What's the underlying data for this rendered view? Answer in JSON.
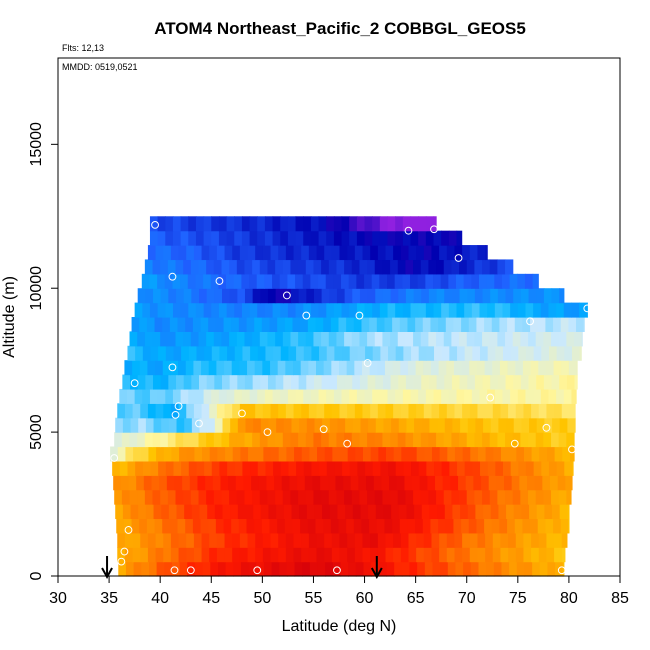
{
  "chart_data": {
    "type": "heatmap",
    "title": "ATOM4 Northeast_Pacific_2 COBBGL_GEOS5",
    "annotations": {
      "flights": "Flts: 12,13",
      "dates": "MMDD: 0519,0521"
    },
    "xlabel": "Latitude (deg N)",
    "ylabel": "Altitude (m)",
    "xlim": [
      30,
      85
    ],
    "ylim": [
      0,
      18000
    ],
    "xticks": [
      "30",
      "35",
      "40",
      "45",
      "50",
      "55",
      "60",
      "65",
      "70",
      "75",
      "80",
      "85"
    ],
    "yticks": [
      "0",
      "5000",
      "10000",
      "15000"
    ],
    "ytick_values": [
      0,
      5000,
      10000,
      15000
    ],
    "grid": false,
    "legend": "none",
    "colors": {
      "scale": [
        "#d4000a",
        "#ff1a00",
        "#ff7a00",
        "#ffc400",
        "#fff7a0",
        "#c8e8ff",
        "#00b4ff",
        "#2060ff",
        "#0000b0",
        "#9020e0"
      ]
    },
    "arrows_latitude": [
      34.8,
      61.2
    ],
    "bands": [
      {
        "alt": 250,
        "lat_start": 35.9,
        "lat_end": 79.5,
        "profile": [
          [
            36,
            2.6
          ],
          [
            40,
            1.7
          ],
          [
            46,
            0.8
          ],
          [
            55,
            0.2
          ],
          [
            60,
            0.6
          ],
          [
            70,
            1.8
          ],
          [
            79.5,
            2.8
          ]
        ]
      },
      {
        "alt": 750,
        "lat_start": 35.8,
        "lat_end": 79.6,
        "profile": [
          [
            36,
            2.8
          ],
          [
            40,
            2.0
          ],
          [
            46,
            1.1
          ],
          [
            55,
            0.5
          ],
          [
            60,
            0.7
          ],
          [
            70,
            2.0
          ],
          [
            79.6,
            3.0
          ]
        ]
      },
      {
        "alt": 1250,
        "lat_start": 35.8,
        "lat_end": 79.8,
        "profile": [
          [
            36,
            2.7
          ],
          [
            40,
            2.1
          ],
          [
            46,
            1.3
          ],
          [
            55,
            0.6
          ],
          [
            61,
            0.5
          ],
          [
            70,
            1.9
          ],
          [
            79.8,
            2.9
          ]
        ]
      },
      {
        "alt": 1750,
        "lat_start": 35.7,
        "lat_end": 80.0,
        "profile": [
          [
            36,
            2.6
          ],
          [
            40,
            2.0
          ],
          [
            46,
            1.2
          ],
          [
            55,
            0.5
          ],
          [
            62,
            0.5
          ],
          [
            72,
            1.9
          ],
          [
            80,
            2.9
          ]
        ]
      },
      {
        "alt": 2250,
        "lat_start": 35.6,
        "lat_end": 80.0,
        "profile": [
          [
            36,
            2.5
          ],
          [
            40,
            1.8
          ],
          [
            46,
            1.0
          ],
          [
            55,
            0.4
          ],
          [
            63,
            0.4
          ],
          [
            72,
            1.8
          ],
          [
            80,
            2.8
          ]
        ]
      },
      {
        "alt": 2750,
        "lat_start": 35.5,
        "lat_end": 80.2,
        "profile": [
          [
            36,
            2.4
          ],
          [
            40,
            1.7
          ],
          [
            46,
            1.0
          ],
          [
            55,
            0.4
          ],
          [
            63,
            0.4
          ],
          [
            72,
            1.7
          ],
          [
            80.2,
            2.7
          ]
        ]
      },
      {
        "alt": 3250,
        "lat_start": 35.4,
        "lat_end": 80.3,
        "profile": [
          [
            36,
            2.4
          ],
          [
            40,
            1.6
          ],
          [
            46,
            1.0
          ],
          [
            55,
            0.5
          ],
          [
            63,
            0.5
          ],
          [
            72,
            1.6
          ],
          [
            80.3,
            2.6
          ]
        ]
      },
      {
        "alt": 3750,
        "lat_start": 35.3,
        "lat_end": 80.4,
        "profile": [
          [
            36,
            2.8
          ],
          [
            40,
            2.0
          ],
          [
            46,
            1.3
          ],
          [
            55,
            0.8
          ],
          [
            63,
            0.7
          ],
          [
            72,
            1.6
          ],
          [
            80.4,
            2.7
          ]
        ]
      },
      {
        "alt": 4250,
        "lat_start": 35.1,
        "lat_end": 80.5,
        "profile": [
          [
            35.1,
            4.6
          ],
          [
            38,
            3.3
          ],
          [
            42,
            2.4
          ],
          [
            48,
            2.0
          ],
          [
            55,
            1.6
          ],
          [
            63,
            1.4
          ],
          [
            72,
            2.0
          ],
          [
            80.5,
            2.8
          ]
        ]
      },
      {
        "alt": 4750,
        "lat_start": 35.5,
        "lat_end": 80.5,
        "profile": [
          [
            35.5,
            4.8
          ],
          [
            38,
            4.3
          ],
          [
            42,
            3.6
          ],
          [
            48,
            2.6
          ],
          [
            55,
            2.0
          ],
          [
            63,
            2.2
          ],
          [
            72,
            2.8
          ],
          [
            80.5,
            3.2
          ]
        ]
      },
      {
        "alt": 5250,
        "lat_start": 35.6,
        "lat_end": 80.6,
        "profile": [
          [
            35.6,
            5.4
          ],
          [
            38,
            5.2
          ],
          [
            42,
            5.8
          ],
          [
            45,
            4.8
          ],
          [
            48,
            2.2
          ],
          [
            55,
            2.3
          ],
          [
            63,
            2.6
          ],
          [
            72,
            3.0
          ],
          [
            80.6,
            3.2
          ]
        ]
      },
      {
        "alt": 5750,
        "lat_start": 35.8,
        "lat_end": 80.6,
        "profile": [
          [
            35.8,
            5.5
          ],
          [
            38,
            5.6
          ],
          [
            41,
            6.2
          ],
          [
            44,
            5.0
          ],
          [
            48,
            3.0
          ],
          [
            55,
            3.1
          ],
          [
            63,
            3.2
          ],
          [
            72,
            3.4
          ],
          [
            80.6,
            3.6
          ]
        ]
      },
      {
        "alt": 6250,
        "lat_start": 36.0,
        "lat_end": 80.7,
        "profile": [
          [
            36,
            5.4
          ],
          [
            39,
            5.6
          ],
          [
            42,
            5.3
          ],
          [
            46,
            4.6
          ],
          [
            52,
            4.3
          ],
          [
            60,
            4.2
          ],
          [
            70,
            4.1
          ],
          [
            80.7,
            4.0
          ]
        ]
      },
      {
        "alt": 6750,
        "lat_start": 36.3,
        "lat_end": 80.8,
        "profile": [
          [
            36.3,
            5.8
          ],
          [
            40,
            6.0
          ],
          [
            44,
            5.4
          ],
          [
            50,
            5.2
          ],
          [
            58,
            4.8
          ],
          [
            66,
            4.4
          ],
          [
            74,
            4.2
          ],
          [
            80.8,
            4.0
          ]
        ]
      },
      {
        "alt": 7250,
        "lat_start": 36.5,
        "lat_end": 80.8,
        "profile": [
          [
            36.5,
            6.0
          ],
          [
            40,
            6.2
          ],
          [
            44,
            5.8
          ],
          [
            50,
            5.8
          ],
          [
            58,
            5.2
          ],
          [
            66,
            4.6
          ],
          [
            74,
            4.4
          ],
          [
            80.8,
            4.2
          ]
        ]
      },
      {
        "alt": 7750,
        "lat_start": 36.8,
        "lat_end": 81.2,
        "profile": [
          [
            36.8,
            5.8
          ],
          [
            40,
            6.2
          ],
          [
            46,
            6.0
          ],
          [
            54,
            5.8
          ],
          [
            60,
            5.4
          ],
          [
            70,
            5.0
          ],
          [
            81.2,
            4.6
          ]
        ]
      },
      {
        "alt": 8250,
        "lat_start": 37.0,
        "lat_end": 81.3,
        "profile": [
          [
            37,
            6.0
          ],
          [
            40,
            6.4
          ],
          [
            46,
            6.2
          ],
          [
            54,
            5.8
          ],
          [
            60,
            5.2
          ],
          [
            70,
            5.0
          ],
          [
            81.3,
            4.8
          ]
        ]
      },
      {
        "alt": 8750,
        "lat_start": 37.2,
        "lat_end": 81.5,
        "profile": [
          [
            37.2,
            6.2
          ],
          [
            40,
            6.5
          ],
          [
            46,
            6.4
          ],
          [
            54,
            6.2
          ],
          [
            62,
            5.6
          ],
          [
            72,
            5.2
          ],
          [
            81.5,
            5.0
          ]
        ]
      },
      {
        "alt": 9250,
        "lat_start": 37.5,
        "lat_end": 81.8,
        "profile": [
          [
            37.5,
            6.3
          ],
          [
            42,
            6.5
          ],
          [
            48,
            6.6
          ],
          [
            54,
            6.5
          ],
          [
            62,
            6.0
          ],
          [
            72,
            5.8
          ],
          [
            78,
            6.2
          ],
          [
            81.8,
            6.3
          ]
        ]
      },
      {
        "alt": 9750,
        "lat_start": 37.8,
        "lat_end": 79.5,
        "profile": [
          [
            37.8,
            6.4
          ],
          [
            42,
            6.6
          ],
          [
            48,
            7.2
          ],
          [
            51,
            8.2
          ],
          [
            55,
            7.6
          ],
          [
            60,
            7.0
          ],
          [
            66,
            6.6
          ],
          [
            72,
            6.5
          ],
          [
            79.5,
            6.4
          ]
        ]
      },
      {
        "alt": 10250,
        "lat_start": 38.2,
        "lat_end": 77.0,
        "profile": [
          [
            38.2,
            6.3
          ],
          [
            42,
            6.6
          ],
          [
            48,
            7.0
          ],
          [
            54,
            7.2
          ],
          [
            60,
            7.4
          ],
          [
            66,
            7.3
          ],
          [
            70,
            7.0
          ],
          [
            77,
            6.8
          ]
        ]
      },
      {
        "alt": 10750,
        "lat_start": 38.5,
        "lat_end": 74.5,
        "profile": [
          [
            38.5,
            6.6
          ],
          [
            42,
            6.8
          ],
          [
            48,
            7.2
          ],
          [
            54,
            7.4
          ],
          [
            60,
            7.6
          ],
          [
            64,
            8.0
          ],
          [
            68,
            7.8
          ],
          [
            74.5,
            7.2
          ]
        ]
      },
      {
        "alt": 11250,
        "lat_start": 38.8,
        "lat_end": 72.0,
        "profile": [
          [
            38.8,
            6.8
          ],
          [
            43,
            7.0
          ],
          [
            48,
            7.4
          ],
          [
            54,
            7.6
          ],
          [
            60,
            7.8
          ],
          [
            66,
            8.0
          ],
          [
            72,
            7.6
          ]
        ]
      },
      {
        "alt": 11750,
        "lat_start": 39.0,
        "lat_end": 69.5,
        "profile": [
          [
            39,
            7.0
          ],
          [
            44,
            7.2
          ],
          [
            50,
            7.5
          ],
          [
            56,
            7.8
          ],
          [
            62,
            8.0
          ],
          [
            69.5,
            8.0
          ]
        ]
      },
      {
        "alt": 12250,
        "lat_start": 39.0,
        "lat_end": 67.0,
        "profile": [
          [
            39,
            7.2
          ],
          [
            44,
            7.4
          ],
          [
            50,
            7.6
          ],
          [
            56,
            7.9
          ],
          [
            60,
            8.5
          ],
          [
            63,
            9.0
          ],
          [
            67,
            9.2
          ]
        ]
      }
    ],
    "flight_points": [
      [
        41.4,
        200
      ],
      [
        43.0,
        200
      ],
      [
        49.5,
        200
      ],
      [
        57.3,
        200
      ],
      [
        79.3,
        200
      ],
      [
        36.2,
        500
      ],
      [
        36.5,
        850
      ],
      [
        36.9,
        1600
      ],
      [
        35.5,
        4100
      ],
      [
        80.3,
        4400
      ],
      [
        58.3,
        4600
      ],
      [
        74.7,
        4600
      ],
      [
        56.0,
        5100
      ],
      [
        50.5,
        5000
      ],
      [
        77.8,
        5150
      ],
      [
        43.8,
        5300
      ],
      [
        41.5,
        5600
      ],
      [
        41.8,
        5900
      ],
      [
        48.0,
        5650
      ],
      [
        72.3,
        6200
      ],
      [
        37.5,
        6700
      ],
      [
        41.2,
        7250
      ],
      [
        60.3,
        7400
      ],
      [
        76.2,
        8850
      ],
      [
        54.3,
        9050
      ],
      [
        59.5,
        9050
      ],
      [
        81.8,
        9300
      ],
      [
        52.4,
        9750
      ],
      [
        45.8,
        10250
      ],
      [
        41.2,
        10400
      ],
      [
        69.2,
        11050
      ],
      [
        64.3,
        12000
      ],
      [
        66.8,
        12050
      ],
      [
        39.5,
        12200
      ]
    ]
  }
}
